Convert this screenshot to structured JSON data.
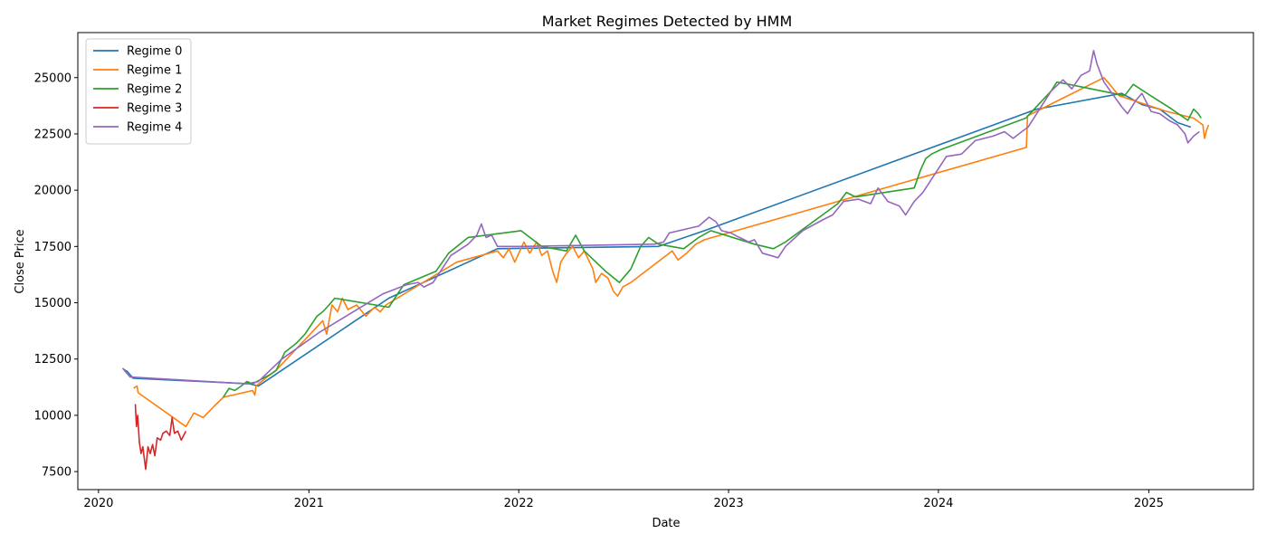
{
  "chart_data": {
    "type": "line",
    "title": "Market Regimes Detected by HMM",
    "xlabel": "Date",
    "ylabel": "Close Price",
    "x_ticks": [
      "2020",
      "2021",
      "2022",
      "2023",
      "2024",
      "2025"
    ],
    "y_ticks": [
      7500,
      10000,
      12500,
      15000,
      17500,
      20000,
      22500,
      25000
    ],
    "xlim": [
      "2019-11-26",
      "2025-07-02"
    ],
    "ylim": [
      6700,
      27000
    ],
    "grid": false,
    "legend_position": "top-left",
    "series": [
      {
        "name": "Regime 0",
        "color": "#1f77b4",
        "points": [
          [
            "2020-02-13",
            12050
          ],
          [
            "2020-02-20",
            11950
          ],
          [
            "2020-03-01",
            11650
          ],
          [
            "2020-09-20",
            11400
          ],
          [
            "2020-10-05",
            11300
          ],
          [
            "2021-05-20",
            15200
          ],
          [
            "2021-11-25",
            17400
          ],
          [
            "2022-09-01",
            17500
          ],
          [
            "2022-11-20",
            18200
          ],
          [
            "2024-06-20",
            23600
          ],
          [
            "2024-11-15",
            24300
          ],
          [
            "2024-12-20",
            23800
          ],
          [
            "2025-01-20",
            23600
          ],
          [
            "2025-02-20",
            23000
          ],
          [
            "2025-03-15",
            22800
          ]
        ]
      },
      {
        "name": "Regime 1",
        "color": "#ff7f0e",
        "points": [
          [
            "2020-03-02",
            11200
          ],
          [
            "2020-03-08",
            11300
          ],
          [
            "2020-03-10",
            11000
          ],
          [
            "2020-06-01",
            9500
          ],
          [
            "2020-06-15",
            10100
          ],
          [
            "2020-07-01",
            9900
          ],
          [
            "2020-07-20",
            10400
          ],
          [
            "2020-08-05",
            10800
          ],
          [
            "2020-09-25",
            11100
          ],
          [
            "2020-09-29",
            10900
          ],
          [
            "2020-10-01",
            11300
          ],
          [
            "2020-10-20",
            11700
          ],
          [
            "2020-11-05",
            12000
          ],
          [
            "2021-01-25",
            14200
          ],
          [
            "2021-02-01",
            13600
          ],
          [
            "2021-02-10",
            14900
          ],
          [
            "2021-02-20",
            14600
          ],
          [
            "2021-02-28",
            15200
          ],
          [
            "2021-03-10",
            14700
          ],
          [
            "2021-03-25",
            14900
          ],
          [
            "2021-04-10",
            14400
          ],
          [
            "2021-04-25",
            14800
          ],
          [
            "2021-05-05",
            14600
          ],
          [
            "2021-05-15",
            14900
          ],
          [
            "2021-09-15",
            16800
          ],
          [
            "2021-11-25",
            17300
          ],
          [
            "2021-12-05",
            17000
          ],
          [
            "2021-12-15",
            17400
          ],
          [
            "2021-12-25",
            16800
          ],
          [
            "2022-01-10",
            17700
          ],
          [
            "2022-01-20",
            17200
          ],
          [
            "2022-02-01",
            17700
          ],
          [
            "2022-02-10",
            17100
          ],
          [
            "2022-02-20",
            17300
          ],
          [
            "2022-03-01",
            16400
          ],
          [
            "2022-03-08",
            15900
          ],
          [
            "2022-03-15",
            16800
          ],
          [
            "2022-03-25",
            17200
          ],
          [
            "2022-04-05",
            17500
          ],
          [
            "2022-04-15",
            17000
          ],
          [
            "2022-04-25",
            17300
          ],
          [
            "2022-05-10",
            16500
          ],
          [
            "2022-05-15",
            15900
          ],
          [
            "2022-05-25",
            16300
          ],
          [
            "2022-06-05",
            16100
          ],
          [
            "2022-06-15",
            15500
          ],
          [
            "2022-06-22",
            15300
          ],
          [
            "2022-07-01",
            15700
          ],
          [
            "2022-07-15",
            15900
          ],
          [
            "2022-09-25",
            17300
          ],
          [
            "2022-10-05",
            16900
          ],
          [
            "2022-10-20",
            17200
          ],
          [
            "2022-11-05",
            17600
          ],
          [
            "2022-11-20",
            17800
          ],
          [
            "2024-06-02",
            21900
          ],
          [
            "2024-06-04",
            23300
          ],
          [
            "2024-10-15",
            25000
          ],
          [
            "2024-10-25",
            24700
          ],
          [
            "2024-11-10",
            24200
          ],
          [
            "2025-02-01",
            23500
          ],
          [
            "2025-03-20",
            23200
          ],
          [
            "2025-04-05",
            22900
          ],
          [
            "2025-04-08",
            22300
          ],
          [
            "2025-04-12",
            22700
          ],
          [
            "2025-04-15",
            22900
          ]
        ]
      },
      {
        "name": "Regime 2",
        "color": "#2ca02c",
        "points": [
          [
            "2020-08-05",
            10800
          ],
          [
            "2020-08-15",
            11200
          ],
          [
            "2020-08-25",
            11100
          ],
          [
            "2020-09-05",
            11300
          ],
          [
            "2020-09-15",
            11500
          ],
          [
            "2020-09-25",
            11400
          ],
          [
            "2020-10-10",
            11600
          ],
          [
            "2020-10-25",
            11800
          ],
          [
            "2020-11-05",
            12000
          ],
          [
            "2020-11-20",
            12800
          ],
          [
            "2020-12-10",
            13200
          ],
          [
            "2020-12-25",
            13600
          ],
          [
            "2021-01-15",
            14400
          ],
          [
            "2021-01-25",
            14600
          ],
          [
            "2021-02-05",
            14900
          ],
          [
            "2021-02-15",
            15200
          ],
          [
            "2021-05-20",
            14800
          ],
          [
            "2021-06-15",
            15800
          ],
          [
            "2021-08-10",
            16400
          ],
          [
            "2021-09-01",
            17200
          ],
          [
            "2021-10-05",
            17900
          ],
          [
            "2022-01-05",
            18200
          ],
          [
            "2022-02-10",
            17500
          ],
          [
            "2022-03-25",
            17300
          ],
          [
            "2022-04-10",
            18000
          ],
          [
            "2022-04-25",
            17300
          ],
          [
            "2022-06-01",
            16400
          ],
          [
            "2022-06-25",
            15900
          ],
          [
            "2022-07-15",
            16500
          ],
          [
            "2022-08-01",
            17500
          ],
          [
            "2022-08-15",
            17900
          ],
          [
            "2022-09-01",
            17600
          ],
          [
            "2022-10-15",
            17400
          ],
          [
            "2022-11-10",
            17900
          ],
          [
            "2022-12-01",
            18200
          ],
          [
            "2023-02-15",
            17600
          ],
          [
            "2023-03-20",
            17400
          ],
          [
            "2023-04-10",
            17700
          ],
          [
            "2023-07-10",
            19400
          ],
          [
            "2023-07-25",
            19900
          ],
          [
            "2023-08-10",
            19700
          ],
          [
            "2023-11-20",
            20100
          ],
          [
            "2023-12-01",
            20900
          ],
          [
            "2023-12-10",
            21400
          ],
          [
            "2023-12-20",
            21600
          ],
          [
            "2024-01-05",
            21800
          ],
          [
            "2024-06-01",
            23200
          ],
          [
            "2024-07-15",
            24400
          ],
          [
            "2024-07-25",
            24800
          ],
          [
            "2024-08-15",
            24700
          ],
          [
            "2024-11-20",
            24200
          ],
          [
            "2024-12-05",
            24700
          ],
          [
            "2025-01-10",
            24100
          ],
          [
            "2025-02-10",
            23600
          ],
          [
            "2025-03-10",
            23100
          ],
          [
            "2025-03-20",
            23600
          ],
          [
            "2025-03-28",
            23400
          ],
          [
            "2025-04-02",
            23200
          ]
        ]
      },
      {
        "name": "Regime 3",
        "color": "#d62728",
        "points": [
          [
            "2020-03-05",
            10500
          ],
          [
            "2020-03-07",
            9500
          ],
          [
            "2020-03-09",
            10000
          ],
          [
            "2020-03-12",
            8800
          ],
          [
            "2020-03-15",
            8300
          ],
          [
            "2020-03-18",
            8600
          ],
          [
            "2020-03-23",
            7600
          ],
          [
            "2020-03-27",
            8600
          ],
          [
            "2020-03-31",
            8300
          ],
          [
            "2020-04-04",
            8700
          ],
          [
            "2020-04-08",
            8200
          ],
          [
            "2020-04-12",
            9000
          ],
          [
            "2020-04-18",
            8900
          ],
          [
            "2020-04-22",
            9200
          ],
          [
            "2020-04-28",
            9300
          ],
          [
            "2020-05-04",
            9100
          ],
          [
            "2020-05-08",
            9900
          ],
          [
            "2020-05-12",
            9200
          ],
          [
            "2020-05-18",
            9300
          ],
          [
            "2020-05-24",
            8900
          ],
          [
            "2020-05-28",
            9100
          ],
          [
            "2020-06-01",
            9300
          ]
        ]
      },
      {
        "name": "Regime 4",
        "color": "#9467bd",
        "points": [
          [
            "2020-02-12",
            12100
          ],
          [
            "2020-02-18",
            11900
          ],
          [
            "2020-02-25",
            11700
          ],
          [
            "2020-09-15",
            11400
          ],
          [
            "2020-10-05",
            11500
          ],
          [
            "2020-11-15",
            12500
          ],
          [
            "2021-01-20",
            13700
          ],
          [
            "2021-05-10",
            15400
          ],
          [
            "2021-06-20",
            15800
          ],
          [
            "2021-07-10",
            15900
          ],
          [
            "2021-07-20",
            15700
          ],
          [
            "2021-08-05",
            15900
          ],
          [
            "2021-09-05",
            17100
          ],
          [
            "2021-10-05",
            17600
          ],
          [
            "2021-10-20",
            18000
          ],
          [
            "2021-10-28",
            18500
          ],
          [
            "2021-11-05",
            17900
          ],
          [
            "2021-11-15",
            18000
          ],
          [
            "2021-11-25",
            17500
          ],
          [
            "2022-01-05",
            17500
          ],
          [
            "2022-08-25",
            17600
          ],
          [
            "2022-09-10",
            17700
          ],
          [
            "2022-09-20",
            18100
          ],
          [
            "2022-11-10",
            18400
          ],
          [
            "2022-11-28",
            18800
          ],
          [
            "2022-12-10",
            18600
          ],
          [
            "2022-12-20",
            18200
          ],
          [
            "2023-01-05",
            18100
          ],
          [
            "2023-01-20",
            17900
          ],
          [
            "2023-02-05",
            17700
          ],
          [
            "2023-02-15",
            17800
          ],
          [
            "2023-03-01",
            17200
          ],
          [
            "2023-03-15",
            17100
          ],
          [
            "2023-03-28",
            17000
          ],
          [
            "2023-04-10",
            17500
          ],
          [
            "2023-05-10",
            18200
          ],
          [
            "2023-06-15",
            18700
          ],
          [
            "2023-07-01",
            18900
          ],
          [
            "2023-07-20",
            19500
          ],
          [
            "2023-08-15",
            19600
          ],
          [
            "2023-09-05",
            19400
          ],
          [
            "2023-09-18",
            20100
          ],
          [
            "2023-10-05",
            19500
          ],
          [
            "2023-10-25",
            19300
          ],
          [
            "2023-11-05",
            18900
          ],
          [
            "2023-11-20",
            19500
          ],
          [
            "2023-12-05",
            19900
          ],
          [
            "2024-01-15",
            21500
          ],
          [
            "2024-02-10",
            21600
          ],
          [
            "2024-03-05",
            22200
          ],
          [
            "2024-04-05",
            22400
          ],
          [
            "2024-04-25",
            22600
          ],
          [
            "2024-05-10",
            22300
          ],
          [
            "2024-05-25",
            22600
          ],
          [
            "2024-06-05",
            22800
          ],
          [
            "2024-07-15",
            24400
          ],
          [
            "2024-08-05",
            24900
          ],
          [
            "2024-08-20",
            24500
          ],
          [
            "2024-09-05",
            25100
          ],
          [
            "2024-09-20",
            25300
          ],
          [
            "2024-09-27",
            26200
          ],
          [
            "2024-10-03",
            25600
          ],
          [
            "2024-10-15",
            24800
          ],
          [
            "2024-11-15",
            23700
          ],
          [
            "2024-11-25",
            23400
          ],
          [
            "2024-12-10",
            24000
          ],
          [
            "2024-12-20",
            24300
          ],
          [
            "2025-01-05",
            23500
          ],
          [
            "2025-01-20",
            23400
          ],
          [
            "2025-02-05",
            23100
          ],
          [
            "2025-02-20",
            22900
          ],
          [
            "2025-03-05",
            22500
          ],
          [
            "2025-03-10",
            22100
          ],
          [
            "2025-03-20",
            22400
          ],
          [
            "2025-03-30",
            22600
          ]
        ]
      }
    ]
  }
}
